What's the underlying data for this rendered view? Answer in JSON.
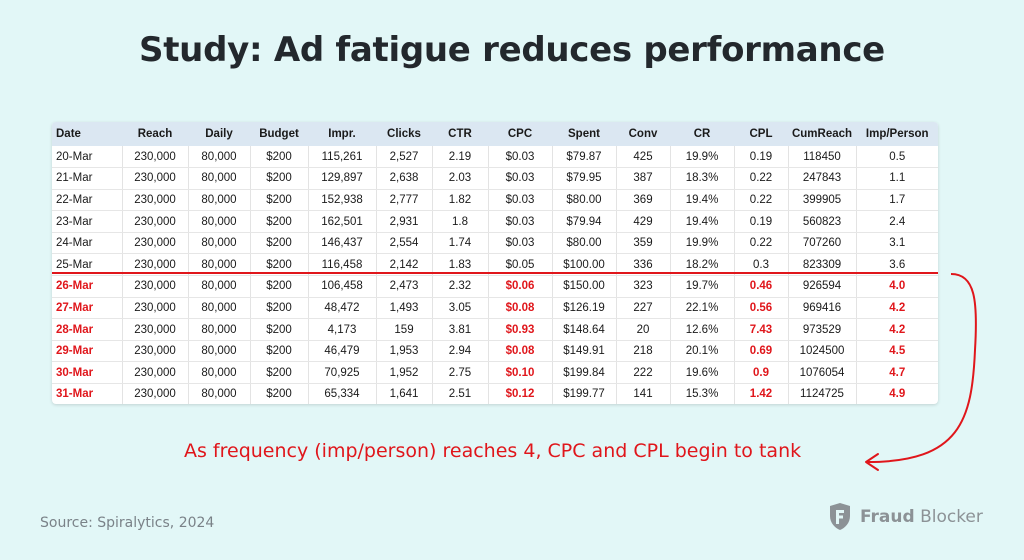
{
  "title": "Study: Ad fatigue reduces performance",
  "table": {
    "headers": [
      "Date",
      "Reach",
      "Daily",
      "Budget",
      "Impr.",
      "Clicks",
      "CTR",
      "CPC",
      "Spent",
      "Conv",
      "CR",
      "CPL",
      "CumReach",
      "Imp/Person"
    ],
    "rows": [
      {
        "cells": [
          "20-Mar",
          "230,000",
          "80,000",
          "$200",
          "115,261",
          "2,527",
          "2.19",
          "$0.03",
          "$79.87",
          "425",
          "19.9%",
          "0.19",
          "118450",
          "0.5"
        ],
        "fatigued": false
      },
      {
        "cells": [
          "21-Mar",
          "230,000",
          "80,000",
          "$200",
          "129,897",
          "2,638",
          "2.03",
          "$0.03",
          "$79.95",
          "387",
          "18.3%",
          "0.22",
          "247843",
          "1.1"
        ],
        "fatigued": false
      },
      {
        "cells": [
          "22-Mar",
          "230,000",
          "80,000",
          "$200",
          "152,938",
          "2,777",
          "1.82",
          "$0.03",
          "$80.00",
          "369",
          "19.4%",
          "0.22",
          "399905",
          "1.7"
        ],
        "fatigued": false
      },
      {
        "cells": [
          "23-Mar",
          "230,000",
          "80,000",
          "$200",
          "162,501",
          "2,931",
          "1.8",
          "$0.03",
          "$79.94",
          "429",
          "19.4%",
          "0.19",
          "560823",
          "2.4"
        ],
        "fatigued": false
      },
      {
        "cells": [
          "24-Mar",
          "230,000",
          "80,000",
          "$200",
          "146,437",
          "2,554",
          "1.74",
          "$0.03",
          "$80.00",
          "359",
          "19.9%",
          "0.22",
          "707260",
          "3.1"
        ],
        "fatigued": false
      },
      {
        "cells": [
          "25-Mar",
          "230,000",
          "80,000",
          "$200",
          "116,458",
          "2,142",
          "1.83",
          "$0.05",
          "$100.00",
          "336",
          "18.2%",
          "0.3",
          "823309",
          "3.6"
        ],
        "fatigued": false
      },
      {
        "cells": [
          "26-Mar",
          "230,000",
          "80,000",
          "$200",
          "106,458",
          "2,473",
          "2.32",
          "$0.06",
          "$150.00",
          "323",
          "19.7%",
          "0.46",
          "926594",
          "4.0"
        ],
        "fatigued": true
      },
      {
        "cells": [
          "27-Mar",
          "230,000",
          "80,000",
          "$200",
          "48,472",
          "1,493",
          "3.05",
          "$0.08",
          "$126.19",
          "227",
          "22.1%",
          "0.56",
          "969416",
          "4.2"
        ],
        "fatigued": true
      },
      {
        "cells": [
          "28-Mar",
          "230,000",
          "80,000",
          "$200",
          "4,173",
          "159",
          "3.81",
          "$0.93",
          "$148.64",
          "20",
          "12.6%",
          "7.43",
          "973529",
          "4.2"
        ],
        "fatigued": true
      },
      {
        "cells": [
          "29-Mar",
          "230,000",
          "80,000",
          "$200",
          "46,479",
          "1,953",
          "2.94",
          "$0.08",
          "$149.91",
          "218",
          "20.1%",
          "0.69",
          "1024500",
          "4.5"
        ],
        "fatigued": true
      },
      {
        "cells": [
          "30-Mar",
          "230,000",
          "80,000",
          "$200",
          "70,925",
          "1,952",
          "2.75",
          "$0.10",
          "$199.84",
          "222",
          "19.6%",
          "0.9",
          "1076054",
          "4.7"
        ],
        "fatigued": true
      },
      {
        "cells": [
          "31-Mar",
          "230,000",
          "80,000",
          "$200",
          "65,334",
          "1,641",
          "2.51",
          "$0.12",
          "$199.77",
          "141",
          "15.3%",
          "1.42",
          "1124725",
          "4.9"
        ],
        "fatigued": true
      }
    ],
    "highlight_columns": [
      0,
      7,
      11,
      13
    ],
    "highlight_color": "#e0161b"
  },
  "annotation": "As frequency (imp/person) reaches 4, CPC and CPL begin to tank",
  "source": "Source: Spiralytics, 2024",
  "logo": {
    "word1": "Fraud",
    "word2": "Blocker",
    "icon": "shield-f-icon"
  },
  "colors": {
    "background": "#e2f7f7",
    "accent": "#e0161b",
    "header_row": "#dbe7f2"
  }
}
